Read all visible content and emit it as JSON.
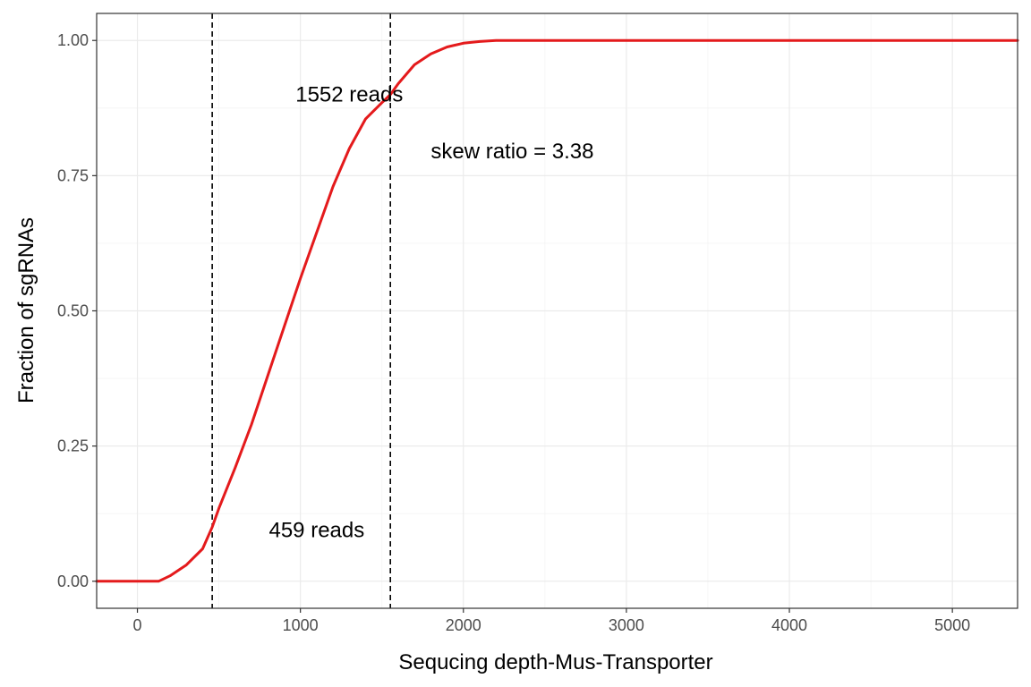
{
  "chart_data": {
    "type": "line",
    "title": "",
    "xlabel": "Sequcing depth-Mus-Transporter",
    "ylabel": "Fraction of sgRNAs",
    "xlim": [
      -250,
      5400
    ],
    "ylim": [
      -0.05,
      1.05
    ],
    "x_ticks": [
      0,
      1000,
      2000,
      3000,
      4000,
      5000
    ],
    "x_tick_labels": [
      "0",
      "1000",
      "2000",
      "3000",
      "4000",
      "5000"
    ],
    "y_ticks": [
      0,
      0.25,
      0.5,
      0.75,
      1.0
    ],
    "y_tick_labels": [
      "0.00",
      "0.25",
      "0.50",
      "0.75",
      "1.00"
    ],
    "grid": true,
    "legend": "none",
    "series": [
      {
        "color": "#e41a1c",
        "x": [
          -250,
          0,
          130,
          200,
          300,
          400,
          459,
          500,
          600,
          700,
          800,
          900,
          1000,
          1100,
          1200,
          1300,
          1400,
          1500,
          1552,
          1600,
          1700,
          1800,
          1900,
          2000,
          2100,
          2200,
          2400,
          2700,
          3000,
          4000,
          5000,
          5400
        ],
        "y": [
          0.0,
          0.0,
          0.0,
          0.01,
          0.03,
          0.06,
          0.1,
          0.135,
          0.21,
          0.29,
          0.38,
          0.47,
          0.56,
          0.645,
          0.73,
          0.8,
          0.855,
          0.885,
          0.9,
          0.92,
          0.955,
          0.975,
          0.988,
          0.995,
          0.998,
          1.0,
          1.0,
          1.0,
          1.0,
          1.0,
          1.0,
          1.0
        ]
      }
    ],
    "vlines": [
      {
        "x": 459,
        "style": "dashed",
        "color": "#000000"
      },
      {
        "x": 1552,
        "style": "dashed",
        "color": "#000000"
      }
    ],
    "annotations": [
      {
        "text": "1552 reads",
        "x": 1300,
        "y": 0.9
      },
      {
        "text": "skew ratio = 3.38",
        "x": 2300,
        "y": 0.795
      },
      {
        "text": "459 reads",
        "x": 1100,
        "y": 0.095
      }
    ]
  }
}
